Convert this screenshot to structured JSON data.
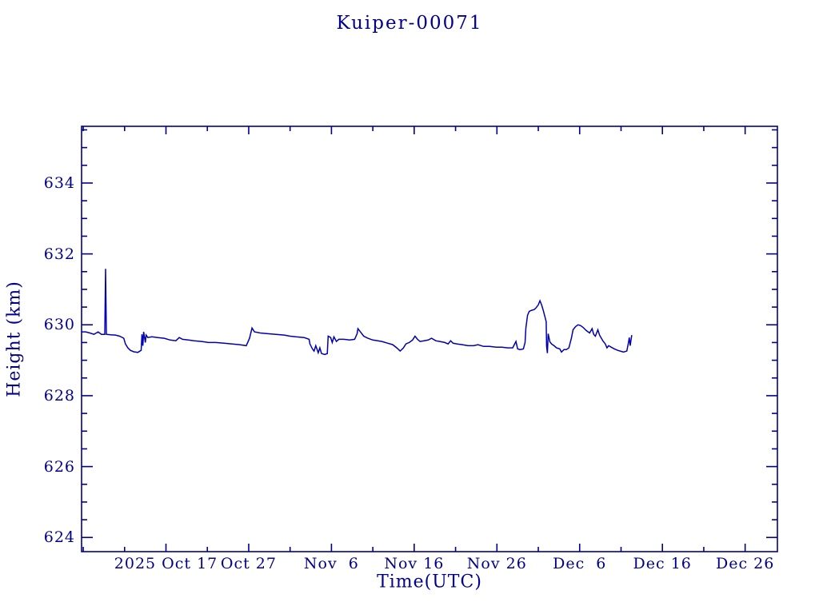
{
  "page": {
    "background": "#ffffff"
  },
  "chart_data": {
    "type": "line",
    "title": "Kuiper-00071",
    "xlabel": "Time(UTC)",
    "ylabel": "Height (km)",
    "axis_color": "#00008b",
    "line_color": "#0000b0",
    "grid": false,
    "legend": false,
    "x_unit": "days since 2025 Oct 7 (from axis date labels)",
    "xlim": [
      -0.2,
      83.9
    ],
    "ylim": [
      623.6,
      635.6
    ],
    "x_minor_step": 5,
    "y_minor_step": 0.5,
    "x_major_ticks": [
      {
        "value": 10,
        "label": "2025 Oct 17"
      },
      {
        "value": 20,
        "label": "Oct 27"
      },
      {
        "value": 30,
        "label": "Nov  6"
      },
      {
        "value": 40,
        "label": "Nov 16"
      },
      {
        "value": 50,
        "label": "Nov 26"
      },
      {
        "value": 60,
        "label": "Dec  6"
      },
      {
        "value": 70,
        "label": "Dec 16"
      },
      {
        "value": 80,
        "label": "Dec 26"
      }
    ],
    "y_major_ticks": [
      {
        "value": 624,
        "label": "624"
      },
      {
        "value": 626,
        "label": "626"
      },
      {
        "value": 628,
        "label": "628"
      },
      {
        "value": 630,
        "label": "630"
      },
      {
        "value": 632,
        "label": "632"
      },
      {
        "value": 634,
        "label": "634"
      }
    ],
    "series": [
      {
        "name": "height_km",
        "points": [
          [
            -0.2,
            629.8
          ],
          [
            0.3,
            629.8
          ],
          [
            0.8,
            629.77
          ],
          [
            1.3,
            629.73
          ],
          [
            1.8,
            629.8
          ],
          [
            2.2,
            629.73
          ],
          [
            2.6,
            629.73
          ],
          [
            2.7,
            631.58
          ],
          [
            2.8,
            629.73
          ],
          [
            3.3,
            629.72
          ],
          [
            3.9,
            629.71
          ],
          [
            4.4,
            629.68
          ],
          [
            4.9,
            629.62
          ],
          [
            5.1,
            629.46
          ],
          [
            5.4,
            629.35
          ],
          [
            5.7,
            629.28
          ],
          [
            6.1,
            629.24
          ],
          [
            6.6,
            629.22
          ],
          [
            7.0,
            629.28
          ],
          [
            7.1,
            629.73
          ],
          [
            7.2,
            629.41
          ],
          [
            7.3,
            629.8
          ],
          [
            7.5,
            629.5
          ],
          [
            7.6,
            629.71
          ],
          [
            7.8,
            629.64
          ],
          [
            8.3,
            629.66
          ],
          [
            9.0,
            629.64
          ],
          [
            9.8,
            629.62
          ],
          [
            10.5,
            629.57
          ],
          [
            11.2,
            629.55
          ],
          [
            11.6,
            629.64
          ],
          [
            12.0,
            629.59
          ],
          [
            12.7,
            629.57
          ],
          [
            13.4,
            629.55
          ],
          [
            14.3,
            629.53
          ],
          [
            15.1,
            629.5
          ],
          [
            16.0,
            629.5
          ],
          [
            17.0,
            629.48
          ],
          [
            18.0,
            629.46
          ],
          [
            18.9,
            629.44
          ],
          [
            19.7,
            629.41
          ],
          [
            20.1,
            629.62
          ],
          [
            20.4,
            629.91
          ],
          [
            20.7,
            629.8
          ],
          [
            21.4,
            629.77
          ],
          [
            22.3,
            629.75
          ],
          [
            23.3,
            629.73
          ],
          [
            24.3,
            629.71
          ],
          [
            25.0,
            629.68
          ],
          [
            25.7,
            629.66
          ],
          [
            26.7,
            629.64
          ],
          [
            27.3,
            629.59
          ],
          [
            27.4,
            629.46
          ],
          [
            27.7,
            629.32
          ],
          [
            27.9,
            629.26
          ],
          [
            28.1,
            629.41
          ],
          [
            28.4,
            629.21
          ],
          [
            28.6,
            629.35
          ],
          [
            28.8,
            629.19
          ],
          [
            29.2,
            629.16
          ],
          [
            29.5,
            629.19
          ],
          [
            29.6,
            629.68
          ],
          [
            29.9,
            629.64
          ],
          [
            30.1,
            629.5
          ],
          [
            30.3,
            629.66
          ],
          [
            30.6,
            629.53
          ],
          [
            30.9,
            629.59
          ],
          [
            31.5,
            629.59
          ],
          [
            32.2,
            629.57
          ],
          [
            32.8,
            629.59
          ],
          [
            33.1,
            629.75
          ],
          [
            33.2,
            629.89
          ],
          [
            33.5,
            629.8
          ],
          [
            33.9,
            629.68
          ],
          [
            34.4,
            629.62
          ],
          [
            35.0,
            629.57
          ],
          [
            35.6,
            629.55
          ],
          [
            36.1,
            629.53
          ],
          [
            36.8,
            629.48
          ],
          [
            37.4,
            629.44
          ],
          [
            37.9,
            629.35
          ],
          [
            38.3,
            629.26
          ],
          [
            38.7,
            629.35
          ],
          [
            39.0,
            629.46
          ],
          [
            39.4,
            629.5
          ],
          [
            39.8,
            629.57
          ],
          [
            40.1,
            629.68
          ],
          [
            40.4,
            629.59
          ],
          [
            40.7,
            629.53
          ],
          [
            41.2,
            629.55
          ],
          [
            41.7,
            629.57
          ],
          [
            42.1,
            629.62
          ],
          [
            42.6,
            629.55
          ],
          [
            43.1,
            629.53
          ],
          [
            43.7,
            629.5
          ],
          [
            44.1,
            629.46
          ],
          [
            44.4,
            629.55
          ],
          [
            44.7,
            629.48
          ],
          [
            45.2,
            629.46
          ],
          [
            45.8,
            629.44
          ],
          [
            46.5,
            629.41
          ],
          [
            47.2,
            629.41
          ],
          [
            47.7,
            629.44
          ],
          [
            48.4,
            629.39
          ],
          [
            49.1,
            629.39
          ],
          [
            49.9,
            629.37
          ],
          [
            50.6,
            629.37
          ],
          [
            51.3,
            629.35
          ],
          [
            51.9,
            629.35
          ],
          [
            52.3,
            629.53
          ],
          [
            52.5,
            629.32
          ],
          [
            52.8,
            629.3
          ],
          [
            53.2,
            629.32
          ],
          [
            53.4,
            629.5
          ],
          [
            53.5,
            629.91
          ],
          [
            53.7,
            630.27
          ],
          [
            53.9,
            630.38
          ],
          [
            54.2,
            630.41
          ],
          [
            54.5,
            630.43
          ],
          [
            54.7,
            630.47
          ],
          [
            55.0,
            630.56
          ],
          [
            55.2,
            630.68
          ],
          [
            55.4,
            630.56
          ],
          [
            55.6,
            630.41
          ],
          [
            55.8,
            630.23
          ],
          [
            55.95,
            630.09
          ],
          [
            56.0,
            629.4
          ],
          [
            56.1,
            629.2
          ],
          [
            56.2,
            629.75
          ],
          [
            56.4,
            629.52
          ],
          [
            56.6,
            629.46
          ],
          [
            56.9,
            629.41
          ],
          [
            57.2,
            629.35
          ],
          [
            57.6,
            629.32
          ],
          [
            57.8,
            629.23
          ],
          [
            58.1,
            629.3
          ],
          [
            58.4,
            629.3
          ],
          [
            58.7,
            629.35
          ],
          [
            59.0,
            629.62
          ],
          [
            59.2,
            629.86
          ],
          [
            59.5,
            629.95
          ],
          [
            59.8,
            630.0
          ],
          [
            60.1,
            629.98
          ],
          [
            60.4,
            629.93
          ],
          [
            60.8,
            629.84
          ],
          [
            61.2,
            629.77
          ],
          [
            61.5,
            629.89
          ],
          [
            61.7,
            629.73
          ],
          [
            61.9,
            629.68
          ],
          [
            62.2,
            629.86
          ],
          [
            62.4,
            629.71
          ],
          [
            62.8,
            629.55
          ],
          [
            63.1,
            629.46
          ],
          [
            63.3,
            629.35
          ],
          [
            63.5,
            629.41
          ],
          [
            63.8,
            629.37
          ],
          [
            64.2,
            629.32
          ],
          [
            64.6,
            629.28
          ],
          [
            64.9,
            629.26
          ],
          [
            65.3,
            629.23
          ],
          [
            65.7,
            629.26
          ],
          [
            65.9,
            629.5
          ],
          [
            66.0,
            629.64
          ],
          [
            66.1,
            629.41
          ],
          [
            66.3,
            629.71
          ]
        ]
      }
    ]
  }
}
